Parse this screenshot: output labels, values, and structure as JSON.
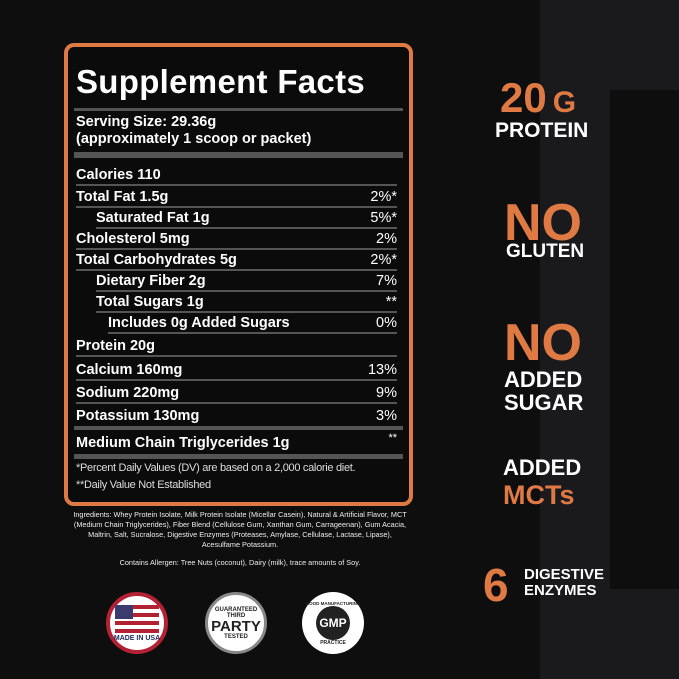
{
  "facts": {
    "title": "Supplement Facts",
    "serving_size": "Serving Size: 29.36g",
    "serving_note": "(approximately 1 scoop or packet)",
    "rows": [
      {
        "label": "Calories 110",
        "value": ""
      },
      {
        "label": "Total Fat 1.5g",
        "value": "2%*"
      },
      {
        "label": "Saturated Fat 1g",
        "value": "5%*"
      },
      {
        "label": "Cholesterol 5mg",
        "value": "2%"
      },
      {
        "label": "Total Carbohydrates 5g",
        "value": "2%*"
      },
      {
        "label": "Dietary Fiber 2g",
        "value": "7%"
      },
      {
        "label": "Total Sugars 1g",
        "value": "**"
      },
      {
        "label": "Includes 0g Added Sugars",
        "value": "0%"
      },
      {
        "label": "Protein 20g",
        "value": ""
      },
      {
        "label": "Calcium 160mg",
        "value": "13%"
      },
      {
        "label": "Sodium 220mg",
        "value": "9%"
      },
      {
        "label": "Potassium 130mg",
        "value": "3%"
      },
      {
        "label": "Medium Chain Triglycerides 1g",
        "value": "**"
      }
    ],
    "footnote1": "*Percent Daily Values (DV) are based on a 2,000 calorie diet.",
    "footnote2": "**Daily Value Not Established"
  },
  "ingredients": "Ingredients:  Whey Protein Isolate, Milk Protein Isolate (Micellar Casein), Natural & Artificial Flavor, MCT (Medium Chain Triglycerides), Fiber Blend (Cellulose Gum, Xanthan Gum, Carrageenan), Gum Acacia, Maltrin, Salt, Sucralose, Digestive Enzymes (Proteases, Amylase, Cellulase, Lactase, Lipase), Acesulfame Potassium.",
  "allergen": "Contains Allergen: Tree Nuts (coconut), Dairy (milk), trace amounts of Soy.",
  "badges": {
    "usa": "MADE IN USA",
    "third_party": [
      "GUARANTEED",
      "THIRD",
      "PARTY",
      "TESTED"
    ],
    "gmp": [
      "GOOD MANUFACTURING",
      "GMP",
      "PRACTICE"
    ]
  },
  "claims": {
    "protein_num": "20",
    "protein_unit": "G",
    "protein_label": "PROTEIN",
    "gluten_no": "NO",
    "gluten_label": "GLUTEN",
    "sugar_no": "NO",
    "sugar_l1": "ADDED",
    "sugar_l2": "SUGAR",
    "mct_l1": "ADDED",
    "mct_l2": "MCTs",
    "enz_num": "6",
    "enz_l1": "DIGESTIVE",
    "enz_l2": "ENZYMES"
  },
  "colors": {
    "accent": "#e07a45",
    "background": "#0e0e0f"
  }
}
